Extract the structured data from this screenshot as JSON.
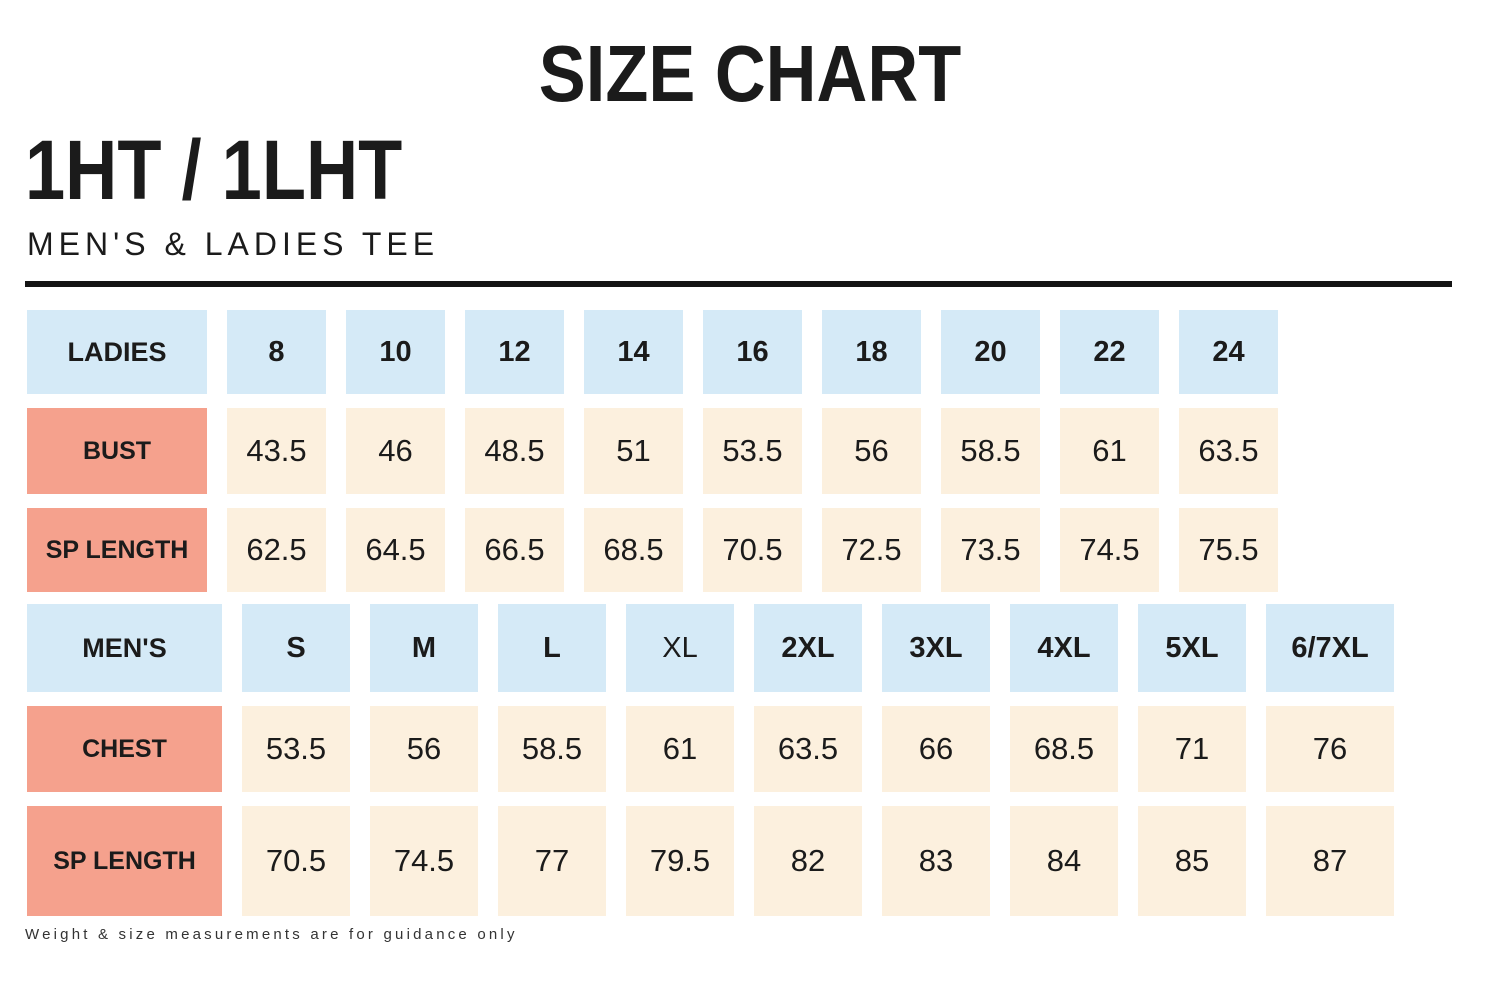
{
  "header": {
    "title": "SIZE CHART",
    "product_code": "1HT / 1LHT",
    "subtitle": "MEN'S & LADIES TEE"
  },
  "footnote": "Weight & size measurements are for guidance only",
  "colors": {
    "size_header_bg": "#d5eaf7",
    "row_label_bg": "#f5a18d",
    "value_cell_bg": "#fcf0de",
    "text": "#1b1b1b",
    "divider": "#141414"
  },
  "chart_data": [
    {
      "type": "table",
      "id": "ladies",
      "title": "LADIES",
      "columns": [
        {
          "label": "8",
          "bold": true
        },
        {
          "label": "10",
          "bold": true
        },
        {
          "label": "12",
          "bold": true
        },
        {
          "label": "14",
          "bold": true
        },
        {
          "label": "16",
          "bold": true
        },
        {
          "label": "18",
          "bold": true
        },
        {
          "label": "20",
          "bold": true
        },
        {
          "label": "22",
          "bold": true
        },
        {
          "label": "24",
          "bold": true
        }
      ],
      "rows": [
        {
          "label": "BUST",
          "values": [
            "43.5",
            "46",
            "48.5",
            "51",
            "53.5",
            "56",
            "58.5",
            "61",
            "63.5"
          ]
        },
        {
          "label": "SP LENGTH",
          "values": [
            "62.5",
            "64.5",
            "66.5",
            "68.5",
            "70.5",
            "72.5",
            "73.5",
            "74.5",
            "75.5"
          ]
        }
      ]
    },
    {
      "type": "table",
      "id": "mens",
      "title": "MEN'S",
      "columns": [
        {
          "label": "S",
          "bold": true
        },
        {
          "label": "M",
          "bold": true
        },
        {
          "label": "L",
          "bold": true
        },
        {
          "label": "XL",
          "bold": false
        },
        {
          "label": "2XL",
          "bold": true
        },
        {
          "label": "3XL",
          "bold": true
        },
        {
          "label": "4XL",
          "bold": true
        },
        {
          "label": "5XL",
          "bold": true
        },
        {
          "label": "6/7XL",
          "bold": true
        }
      ],
      "rows": [
        {
          "label": "CHEST",
          "values": [
            "53.5",
            "56",
            "58.5",
            "61",
            "63.5",
            "66",
            "68.5",
            "71",
            "76"
          ]
        },
        {
          "label": "SP LENGTH",
          "values": [
            "70.5",
            "74.5",
            "77",
            "79.5",
            "82",
            "83",
            "84",
            "85",
            "87"
          ]
        }
      ]
    }
  ]
}
